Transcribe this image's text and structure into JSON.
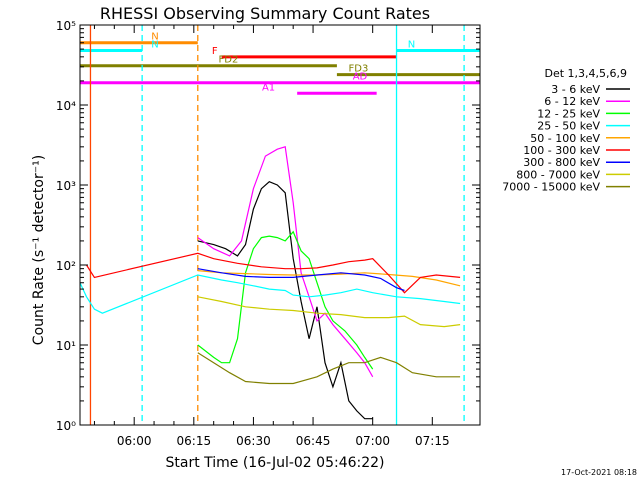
{
  "chart_data": {
    "type": "line",
    "title": "RHESSI Observing Summary Count Rates",
    "xlabel": "Start Time (16-Jul-02 05:46:22)",
    "ylabel": "Count Rate (s⁻¹ detector⁻¹)",
    "x_ticks": [
      "06:00",
      "06:15",
      "06:30",
      "06:45",
      "07:00",
      "07:15"
    ],
    "xlim": [
      "05:46:22",
      "07:27:00"
    ],
    "y_scale": "log",
    "ylim": [
      1,
      100000
    ],
    "y_ticks": [
      "10⁰",
      "10¹",
      "10²",
      "10³",
      "10⁴",
      "10⁵"
    ],
    "legend_position": "right",
    "legend_title": "Det 1,3,4,5,6,9",
    "series": [
      {
        "name": "3 - 6 keV",
        "color": "#000000",
        "points": [
          [
            "06:16",
            200
          ],
          [
            "06:20",
            180
          ],
          [
            "06:23",
            160
          ],
          [
            "06:26",
            130
          ],
          [
            "06:28",
            180
          ],
          [
            "06:30",
            500
          ],
          [
            "06:32",
            900
          ],
          [
            "06:34",
            1100
          ],
          [
            "06:36",
            1000
          ],
          [
            "06:38",
            800
          ],
          [
            "06:40",
            120
          ],
          [
            "06:42",
            35
          ],
          [
            "06:44",
            12
          ],
          [
            "06:46",
            30
          ],
          [
            "06:48",
            6
          ],
          [
            "06:50",
            3
          ],
          [
            "06:52",
            6
          ],
          [
            "06:54",
            2
          ],
          [
            "06:56",
            1.5
          ],
          [
            "06:58",
            1.2
          ],
          [
            "07:00",
            1.2
          ]
        ]
      },
      {
        "name": "6 - 12 keV",
        "color": "#ff00ff",
        "points": [
          [
            "06:16",
            220
          ],
          [
            "06:20",
            160
          ],
          [
            "06:24",
            130
          ],
          [
            "06:27",
            200
          ],
          [
            "06:30",
            900
          ],
          [
            "06:33",
            2300
          ],
          [
            "06:36",
            2800
          ],
          [
            "06:38",
            3000
          ],
          [
            "06:40",
            600
          ],
          [
            "06:42",
            80
          ],
          [
            "06:44",
            40
          ],
          [
            "06:46",
            20
          ],
          [
            "06:48",
            25
          ],
          [
            "06:50",
            18
          ],
          [
            "06:53",
            12
          ],
          [
            "06:56",
            8
          ],
          [
            "06:58",
            6
          ],
          [
            "07:00",
            4
          ]
        ]
      },
      {
        "name": "12 - 25 keV",
        "color": "#00ff00",
        "points": [
          [
            "06:16",
            10
          ],
          [
            "06:20",
            7
          ],
          [
            "06:22",
            6
          ],
          [
            "06:24",
            6
          ],
          [
            "06:26",
            12
          ],
          [
            "06:28",
            80
          ],
          [
            "06:30",
            160
          ],
          [
            "06:32",
            220
          ],
          [
            "06:34",
            230
          ],
          [
            "06:36",
            220
          ],
          [
            "06:38",
            200
          ],
          [
            "06:40",
            260
          ],
          [
            "06:42",
            150
          ],
          [
            "06:44",
            120
          ],
          [
            "06:46",
            60
          ],
          [
            "06:48",
            30
          ],
          [
            "06:50",
            20
          ],
          [
            "06:53",
            15
          ],
          [
            "06:56",
            10
          ],
          [
            "06:58",
            7
          ],
          [
            "07:00",
            5
          ]
        ]
      },
      {
        "name": "25 - 50 keV",
        "color": "#00ffff",
        "points": [
          [
            "05:46:22",
            60
          ],
          [
            "05:48",
            40
          ],
          [
            "05:50",
            28
          ],
          [
            "05:52",
            25
          ],
          [
            "06:16",
            75
          ],
          [
            "06:22",
            65
          ],
          [
            "06:26",
            60
          ],
          [
            "06:30",
            55
          ],
          [
            "06:34",
            50
          ],
          [
            "06:38",
            48
          ],
          [
            "06:40",
            42
          ],
          [
            "06:44",
            40
          ],
          [
            "06:48",
            42
          ],
          [
            "06:52",
            45
          ],
          [
            "06:56",
            50
          ],
          [
            "07:00",
            45
          ],
          [
            "07:06",
            40
          ],
          [
            "07:12",
            38
          ],
          [
            "07:18",
            35
          ],
          [
            "07:22",
            33
          ]
        ]
      },
      {
        "name": "50 - 100 keV",
        "color": "#ffa500",
        "points": [
          [
            "06:16",
            85
          ],
          [
            "06:22",
            80
          ],
          [
            "06:28",
            78
          ],
          [
            "06:34",
            76
          ],
          [
            "06:40",
            75
          ],
          [
            "06:46",
            75
          ],
          [
            "06:52",
            77
          ],
          [
            "06:58",
            80
          ],
          [
            "07:04",
            76
          ],
          [
            "07:10",
            72
          ],
          [
            "07:16",
            65
          ],
          [
            "07:22",
            55
          ]
        ]
      },
      {
        "name": "100 - 300 keV",
        "color": "#ff0000",
        "points": [
          [
            "05:48",
            100
          ],
          [
            "05:50",
            70
          ],
          [
            "06:16",
            140
          ],
          [
            "06:20",
            120
          ],
          [
            "06:26",
            105
          ],
          [
            "06:32",
            95
          ],
          [
            "06:38",
            90
          ],
          [
            "06:42",
            90
          ],
          [
            "06:46",
            92
          ],
          [
            "06:50",
            100
          ],
          [
            "06:54",
            110
          ],
          [
            "06:58",
            115
          ],
          [
            "07:00",
            120
          ],
          [
            "07:04",
            75
          ],
          [
            "07:08",
            45
          ],
          [
            "07:12",
            70
          ],
          [
            "07:16",
            75
          ],
          [
            "07:22",
            70
          ]
        ]
      },
      {
        "name": "300 - 800 keV",
        "color": "#0000ff",
        "points": [
          [
            "06:16",
            90
          ],
          [
            "06:22",
            80
          ],
          [
            "06:28",
            72
          ],
          [
            "06:34",
            70
          ],
          [
            "06:40",
            70
          ],
          [
            "06:46",
            75
          ],
          [
            "06:52",
            80
          ],
          [
            "06:58",
            75
          ],
          [
            "07:02",
            68
          ],
          [
            "07:06",
            52
          ],
          [
            "07:08",
            48
          ]
        ]
      },
      {
        "name": "800 - 7000 keV",
        "color": "#cccc00",
        "points": [
          [
            "06:16",
            40
          ],
          [
            "06:22",
            35
          ],
          [
            "06:28",
            30
          ],
          [
            "06:34",
            28
          ],
          [
            "06:40",
            27
          ],
          [
            "06:46",
            25
          ],
          [
            "06:52",
            24
          ],
          [
            "06:58",
            22
          ],
          [
            "07:04",
            22
          ],
          [
            "07:08",
            23
          ],
          [
            "07:12",
            18
          ],
          [
            "07:18",
            17
          ],
          [
            "07:22",
            18
          ]
        ]
      },
      {
        "name": "7000 - 15000 keV",
        "color": "#808000",
        "points": [
          [
            "06:16",
            8
          ],
          [
            "06:20",
            6
          ],
          [
            "06:24",
            4.5
          ],
          [
            "06:28",
            3.5
          ],
          [
            "06:34",
            3.3
          ],
          [
            "06:40",
            3.3
          ],
          [
            "06:46",
            4
          ],
          [
            "06:50",
            5
          ],
          [
            "06:54",
            6
          ],
          [
            "06:58",
            6
          ],
          [
            "07:02",
            7
          ],
          [
            "07:06",
            6
          ],
          [
            "07:10",
            4.5
          ],
          [
            "07:16",
            4
          ],
          [
            "07:22",
            4
          ]
        ]
      }
    ],
    "flag_bars": [
      {
        "label": "N",
        "color": "#ff8c00",
        "y": 60000,
        "start": "05:46:22",
        "end": "06:16"
      },
      {
        "label": "N",
        "color": "#00ffff",
        "y": 48000,
        "start": "05:46:22",
        "end": "06:02"
      },
      {
        "label": "N",
        "color": "#00ffff",
        "y": 48000,
        "start": "07:06",
        "end": "07:27"
      },
      {
        "label": "F",
        "color": "#ff0000",
        "y": 40000,
        "start": "06:22",
        "end": "07:06"
      },
      {
        "label": "FD2",
        "color": "#808000",
        "y": 31000,
        "start": "05:46:22",
        "end": "06:51"
      },
      {
        "label": "FD3",
        "color": "#808000",
        "y": 24000,
        "start": "06:51",
        "end": "07:27"
      },
      {
        "label": "AD",
        "color": "#ff00ff",
        "y": 19000,
        "start": "05:46:22",
        "end": "07:27"
      },
      {
        "label": "A1",
        "color": "#ff00ff",
        "y": 14000,
        "start": "06:41",
        "end": "07:01"
      }
    ],
    "markers": [
      {
        "color": "#00ffff",
        "style": "dashed",
        "time": "06:02"
      },
      {
        "color": "#ff8c00",
        "style": "dashed",
        "time": "06:16"
      },
      {
        "color": "#00ffff",
        "style": "solid",
        "time": "07:06"
      },
      {
        "color": "#00ffff",
        "style": "dashed",
        "time": "07:23"
      },
      {
        "color": "#ff4500",
        "style": "solid",
        "time": "05:49"
      }
    ]
  },
  "timestamp": "17-Oct-2021 08:18"
}
